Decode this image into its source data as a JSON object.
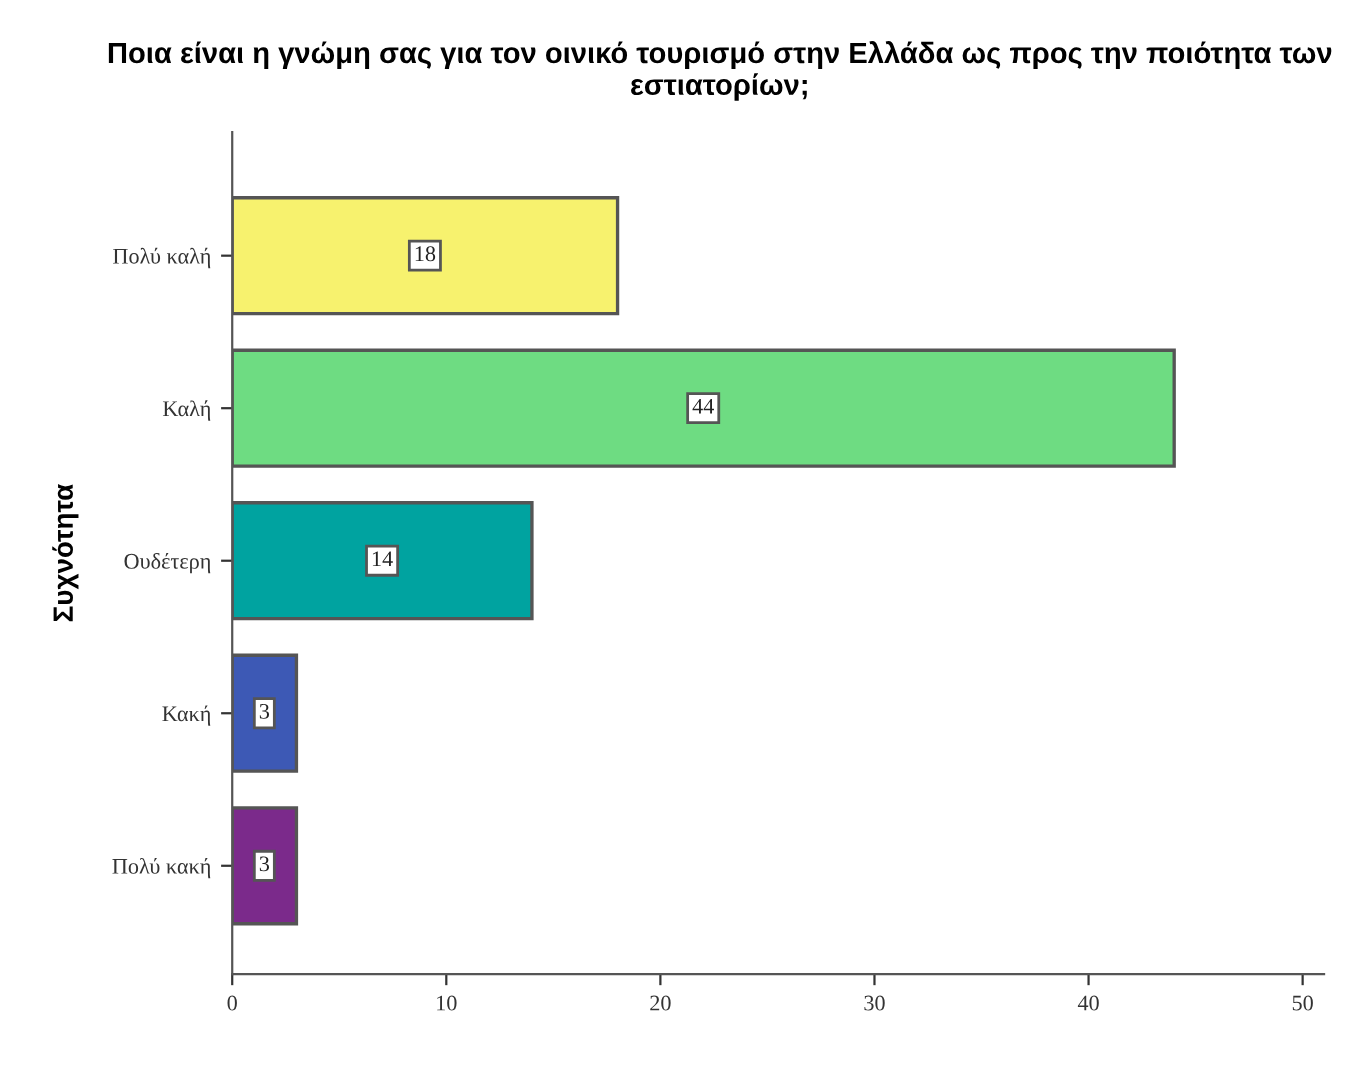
{
  "chart_data": {
    "type": "bar",
    "orientation": "horizontal",
    "title": "Ποια είναι η γνώμη σας για τον οινικό τουρισμό στην Ελλάδα ως προς την ποιότητα των εστιατορίων;",
    "ylabel": "Συχνότητα",
    "categories": [
      "Πολύ καλή",
      "Καλή",
      "Ουδέτερη",
      "Κακή",
      "Πολύ κακή"
    ],
    "values": [
      18,
      44,
      14,
      3,
      3
    ],
    "colors": [
      "#f7f26e",
      "#6edc82",
      "#00a3a0",
      "#3d59b5",
      "#7b2a8b"
    ],
    "xlim": [
      0,
      51
    ],
    "xticks": [
      0,
      10,
      20,
      30,
      40,
      50
    ],
    "data_labels": true,
    "grid": false,
    "legend": false
  }
}
